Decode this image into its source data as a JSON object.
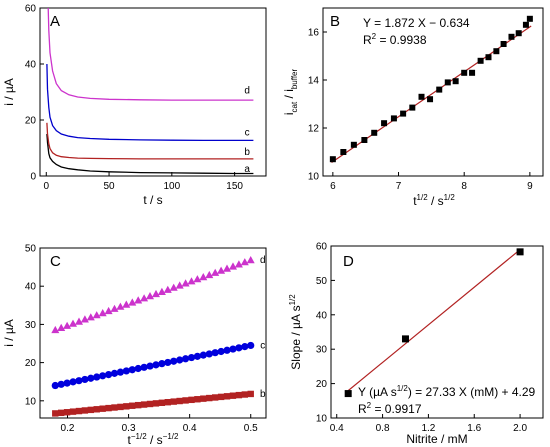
{
  "chart_data": [
    {
      "panel": "A",
      "type": "line",
      "xlabel": "t / s",
      "ylabel": "i / µA",
      "xlim": [
        -5,
        175
      ],
      "ylim": [
        0,
        60
      ],
      "xticks": [
        0,
        50,
        100,
        150
      ],
      "yticks": [
        0,
        20,
        40,
        60
      ],
      "grid": false,
      "series": [
        {
          "name": "a",
          "color": "#000000",
          "label_at": [
            160,
            2.5
          ],
          "x": [
            0.5,
            1,
            2,
            3,
            5,
            8,
            12,
            18,
            25,
            35,
            50,
            75,
            100,
            125,
            150,
            165
          ],
          "y": [
            15,
            12,
            8,
            6.5,
            5.2,
            4.1,
            3.2,
            2.6,
            2.2,
            1.8,
            1.5,
            1.2,
            1.1,
            1.0,
            0.9,
            0.9
          ]
        },
        {
          "name": "b",
          "color": "#b22222",
          "label_at": [
            160,
            8.5
          ],
          "x": [
            0.5,
            1,
            2,
            3,
            5,
            8,
            12,
            18,
            25,
            35,
            50,
            75,
            100,
            125,
            150,
            165
          ],
          "y": [
            19,
            15,
            11.5,
            9.8,
            8.3,
            7.4,
            6.9,
            6.6,
            6.4,
            6.3,
            6.2,
            6.1,
            6.1,
            6.1,
            6.1,
            6.1
          ]
        },
        {
          "name": "c",
          "color": "#0000cc",
          "label_at": [
            160,
            15.5
          ],
          "x": [
            0.5,
            1,
            2,
            3,
            5,
            8,
            12,
            18,
            25,
            35,
            50,
            75,
            100,
            125,
            150,
            165
          ],
          "y": [
            40,
            31,
            24.5,
            21,
            18,
            16.2,
            15,
            14.2,
            13.7,
            13.4,
            13.1,
            12.9,
            12.8,
            12.7,
            12.7,
            12.7
          ]
        },
        {
          "name": "d",
          "color": "#cc33cc",
          "label_at": [
            160,
            30.5
          ],
          "x": [
            1.5,
            2,
            3,
            5,
            8,
            12,
            18,
            25,
            35,
            50,
            75,
            100,
            125,
            150,
            165
          ],
          "y": [
            60,
            52,
            44,
            37.5,
            33,
            30.5,
            29,
            28.2,
            27.7,
            27.4,
            27.2,
            27.1,
            27.1,
            27.1,
            27.1
          ]
        }
      ]
    },
    {
      "panel": "B",
      "type": "scatter",
      "xlabel": "t",
      "xlabel_sup": "1/2",
      "xlabel_mid": " / s",
      "xlabel_sup2": "1/2",
      "ylabel": "i",
      "ylabel_sub": "cat",
      "ylabel_mid": " / i",
      "ylabel_sub2": "buffer",
      "xlim": [
        5.85,
        9.2
      ],
      "ylim": [
        10,
        17
      ],
      "xticks": [
        6,
        7,
        8,
        9
      ],
      "yticks": [
        10,
        12,
        14,
        16
      ],
      "grid": false,
      "equation": "Y = 1.872 X − 0.634",
      "r2_prefix": "R",
      "r2_sup": "2",
      "r2_value": " = 0.9938",
      "fit": {
        "slope": 1.872,
        "intercept": -0.634,
        "x": [
          5.98,
          9.02
        ],
        "color": "#b22222"
      },
      "points": {
        "x": [
          6.0,
          6.16,
          6.32,
          6.48,
          6.63,
          6.78,
          6.93,
          7.07,
          7.21,
          7.35,
          7.48,
          7.62,
          7.75,
          7.87,
          8.0,
          8.12,
          8.25,
          8.37,
          8.49,
          8.6,
          8.72,
          8.83,
          8.94,
          9.0
        ],
        "y": [
          10.7,
          11.0,
          11.3,
          11.5,
          11.8,
          12.2,
          12.4,
          12.6,
          12.85,
          13.3,
          13.2,
          13.6,
          13.9,
          13.95,
          14.3,
          14.3,
          14.8,
          14.95,
          15.2,
          15.5,
          15.8,
          15.95,
          16.3,
          16.55
        ],
        "color": "#000000"
      }
    },
    {
      "panel": "C",
      "type": "scatter",
      "xlabel": "t",
      "xlabel_sup": "−1/2",
      "xlabel_mid": " / s",
      "xlabel_sup2": "−1/2",
      "ylabel": "i / µA",
      "xlim": [
        0.155,
        0.525
      ],
      "ylim": [
        5.5,
        50
      ],
      "xticks": [
        0.2,
        0.3,
        0.4,
        0.5
      ],
      "yticks": [
        10,
        20,
        30,
        40,
        50
      ],
      "grid": false,
      "series": [
        {
          "name": "b",
          "marker": "square",
          "color": "#b22222",
          "range": [
            0.18,
            0.5
          ],
          "y0": 6.7,
          "y1": 11.8,
          "n": 34
        },
        {
          "name": "c",
          "marker": "circle",
          "color": "#0000dd",
          "range": [
            0.18,
            0.5
          ],
          "y0": 14.0,
          "y1": 24.5,
          "n": 34
        },
        {
          "name": "d",
          "marker": "triangle",
          "color": "#cc33cc",
          "range": [
            0.18,
            0.5
          ],
          "y0": 28.5,
          "y1": 46.8,
          "n": 34
        }
      ]
    },
    {
      "panel": "D",
      "type": "scatter",
      "xlabel": "Nitrite / mM",
      "ylabel": "Slope / µA s",
      "ylabel_sup": "1/2",
      "xlim": [
        0.35,
        2.2
      ],
      "ylim": [
        10,
        60
      ],
      "xticks": [
        0.4,
        0.8,
        1.2,
        1.6,
        2.0
      ],
      "yticks": [
        10,
        20,
        30,
        40,
        50,
        60
      ],
      "grid": false,
      "equation_prefix": "Y (µA s",
      "equation_sup": "1/2",
      "equation_rest": ") = 27.33 X (mM) + 4.29",
      "r2_prefix": "R",
      "r2_sup": "2",
      "r2_value": " = 0.9917",
      "fit": {
        "slope": 27.33,
        "intercept": 4.29,
        "x": [
          0.5,
          2.0
        ],
        "color": "#b22222"
      },
      "points": {
        "x": [
          0.5,
          1.0,
          2.0
        ],
        "y": [
          17.1,
          33.0,
          58.3
        ],
        "color": "#000000"
      }
    }
  ]
}
